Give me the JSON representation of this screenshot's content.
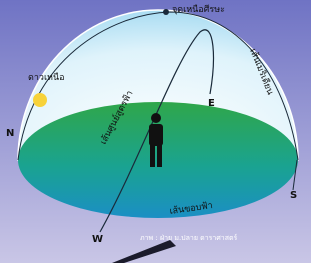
{
  "diagram": {
    "labels": {
      "zenith": "จุดเหนือศีรษะ",
      "polaris": "ดาวเหนือ",
      "meridian": "เส้นเมริเดียน",
      "celestial_equator": "เส้นศูนย์สูตรฟ้า",
      "horizon": "เส้นขอบฟ้า",
      "north": "N",
      "east": "E",
      "south": "S",
      "west": "W"
    },
    "credit": "ภาพ : ฝ่าย ม.ปลาย ดาราศาสตร์"
  }
}
